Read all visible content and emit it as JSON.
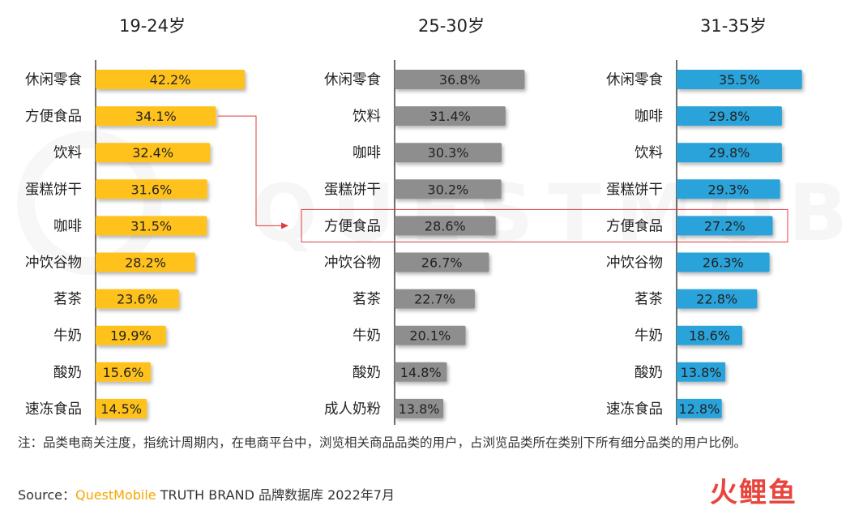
{
  "chart_data": [
    {
      "type": "bar",
      "title": "19-24岁",
      "categories": [
        "休闲零食",
        "方便食品",
        "饮料",
        "蛋糕饼干",
        "咖啡",
        "冲饮谷物",
        "茗茶",
        "牛奶",
        "酸奶",
        "速冻食品"
      ],
      "values": [
        42.2,
        34.1,
        32.4,
        31.6,
        31.5,
        28.2,
        23.6,
        19.9,
        15.6,
        14.5
      ],
      "labels": [
        "42.2%",
        "34.1%",
        "32.4%",
        "31.6%",
        "31.5%",
        "28.2%",
        "23.6%",
        "19.9%",
        "15.6%",
        "14.5%"
      ],
      "color": "#FFC21A",
      "xlim": [
        0,
        45
      ]
    },
    {
      "type": "bar",
      "title": "25-30岁",
      "categories": [
        "休闲零食",
        "饮料",
        "咖啡",
        "蛋糕饼干",
        "方便食品",
        "冲饮谷物",
        "茗茶",
        "牛奶",
        "酸奶",
        "成人奶粉"
      ],
      "values": [
        36.8,
        31.4,
        30.3,
        30.2,
        28.6,
        26.7,
        22.7,
        20.1,
        14.8,
        13.8
      ],
      "labels": [
        "36.8%",
        "31.4%",
        "30.3%",
        "30.2%",
        "28.6%",
        "26.7%",
        "22.7%",
        "20.1%",
        "14.8%",
        "13.8%"
      ],
      "color": "#8E8E8E",
      "xlim": [
        0,
        45
      ]
    },
    {
      "type": "bar",
      "title": "31-35岁",
      "categories": [
        "休闲零食",
        "咖啡",
        "饮料",
        "蛋糕饼干",
        "方便食品",
        "冲饮谷物",
        "茗茶",
        "牛奶",
        "酸奶",
        "速冻食品"
      ],
      "values": [
        35.5,
        29.8,
        29.8,
        29.3,
        27.2,
        26.3,
        22.8,
        18.6,
        13.8,
        12.8
      ],
      "labels": [
        "35.5%",
        "29.8%",
        "29.8%",
        "29.3%",
        "27.2%",
        "26.3%",
        "22.8%",
        "18.6%",
        "13.8%",
        "12.8%"
      ],
      "color": "#2BA3DB",
      "xlim": [
        0,
        45
      ]
    }
  ],
  "note": "注：品类电商关注度，指统计周期内，在电商平台中，浏览相关商品品类的用户，占浏览品类所在类别下所有细分品类的用户比例。",
  "source": {
    "prefix": "Source：",
    "brand": "QuestMobile",
    "suffix": " TRUTH BRAND 品牌数据库 2022年7月"
  },
  "watermark_text": "QUESTMOBILE",
  "logo": {
    "c1": "火",
    "c2": "鲤",
    "c3": "鱼"
  },
  "highlight": {
    "category": "方便食品",
    "color": "#E03C3C"
  }
}
